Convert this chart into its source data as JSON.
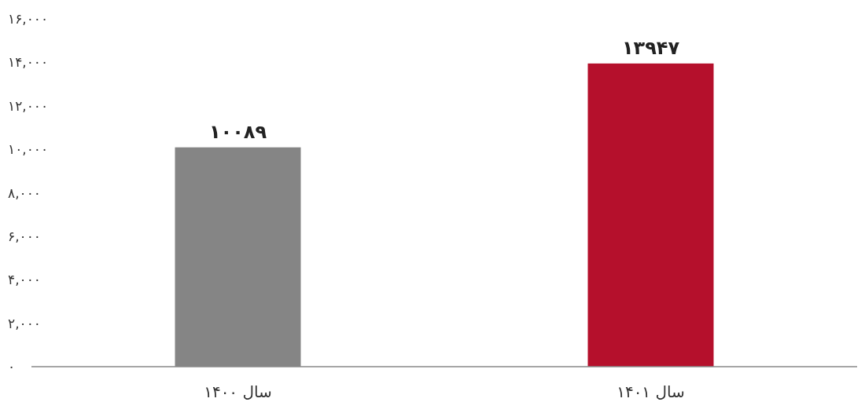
{
  "chart_data": {
    "type": "bar",
    "categories": [
      "سال ۱۴۰۰",
      "سال ۱۴۰۱"
    ],
    "values": [
      10089,
      13947
    ],
    "value_labels": [
      "۱۰۰۸۹",
      "۱۳۹۴۷"
    ],
    "colors": [
      "#858585",
      "#b5102c"
    ],
    "ylim": [
      0,
      16000
    ],
    "yticks": [
      {
        "value": 0,
        "label": "۰"
      },
      {
        "value": 2000,
        "label": "۲,۰۰۰"
      },
      {
        "value": 4000,
        "label": "۴,۰۰۰"
      },
      {
        "value": 6000,
        "label": "۶,۰۰۰"
      },
      {
        "value": 8000,
        "label": "۸,۰۰۰"
      },
      {
        "value": 10000,
        "label": "۱۰,۰۰۰"
      },
      {
        "value": 12000,
        "label": "۱۲,۰۰۰"
      },
      {
        "value": 14000,
        "label": "۱۴,۰۰۰"
      },
      {
        "value": 16000,
        "label": "۱۶,۰۰۰"
      }
    ],
    "grid": false
  }
}
